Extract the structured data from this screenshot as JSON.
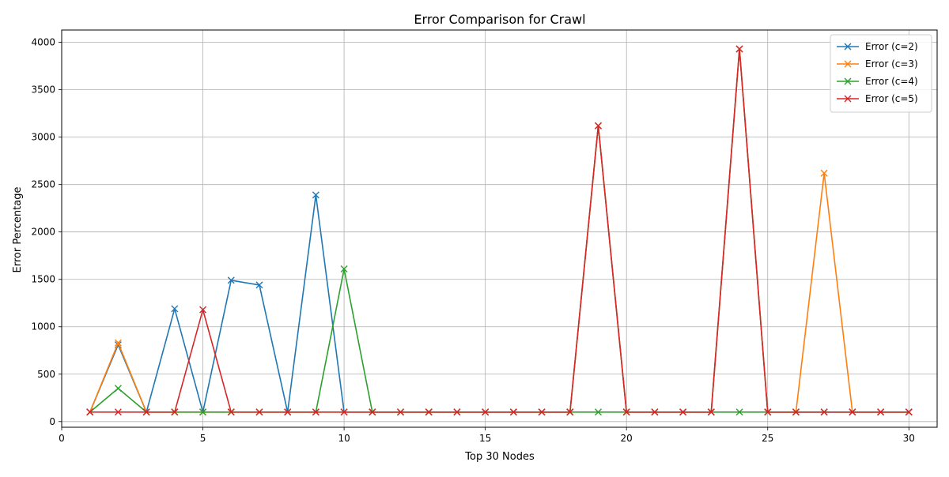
{
  "chart_data": {
    "type": "line",
    "title": "Error Comparison for Crawl",
    "xlabel": "Top 30 Nodes",
    "ylabel": "Error Percentage",
    "xlim": [
      0,
      31
    ],
    "ylim": [
      -60,
      4130
    ],
    "xticks": [
      0,
      5,
      10,
      15,
      20,
      25,
      30
    ],
    "yticks": [
      0,
      500,
      1000,
      1500,
      2000,
      2500,
      3000,
      3500,
      4000
    ],
    "grid": true,
    "legend_position": "top-right",
    "marker": "x",
    "x": [
      1,
      2,
      3,
      4,
      5,
      6,
      7,
      8,
      9,
      10,
      11,
      12,
      13,
      14,
      15,
      16,
      17,
      18,
      19,
      20,
      21,
      22,
      23,
      24,
      25,
      26,
      27,
      28,
      29,
      30
    ],
    "series": [
      {
        "name": "Error (c=2)",
        "color": "#1f77b4",
        "values": [
          100,
          810,
          100,
          1190,
          100,
          1490,
          1440,
          100,
          2390,
          100,
          100,
          100,
          100,
          100,
          100,
          100,
          100,
          100,
          3120,
          100,
          100,
          100,
          100,
          3930,
          100,
          100,
          100,
          100,
          100,
          100
        ]
      },
      {
        "name": "Error (c=3)",
        "color": "#ff7f0e",
        "values": [
          100,
          830,
          100,
          100,
          100,
          100,
          100,
          100,
          100,
          100,
          100,
          100,
          100,
          100,
          100,
          100,
          100,
          100,
          3120,
          100,
          100,
          100,
          100,
          3930,
          100,
          100,
          2620,
          100,
          100,
          100
        ]
      },
      {
        "name": "Error (c=4)",
        "color": "#2ca02c",
        "values": [
          100,
          350,
          100,
          100,
          100,
          100,
          100,
          100,
          100,
          1610,
          100,
          100,
          100,
          100,
          100,
          100,
          100,
          100,
          100,
          100,
          100,
          100,
          100,
          100,
          100,
          100,
          100,
          100,
          100,
          100
        ]
      },
      {
        "name": "Error (c=5)",
        "color": "#d62728",
        "values": [
          100,
          100,
          100,
          100,
          1180,
          100,
          100,
          100,
          100,
          100,
          100,
          100,
          100,
          100,
          100,
          100,
          100,
          100,
          3120,
          100,
          100,
          100,
          100,
          3930,
          100,
          100,
          100,
          100,
          100,
          100
        ]
      }
    ]
  }
}
